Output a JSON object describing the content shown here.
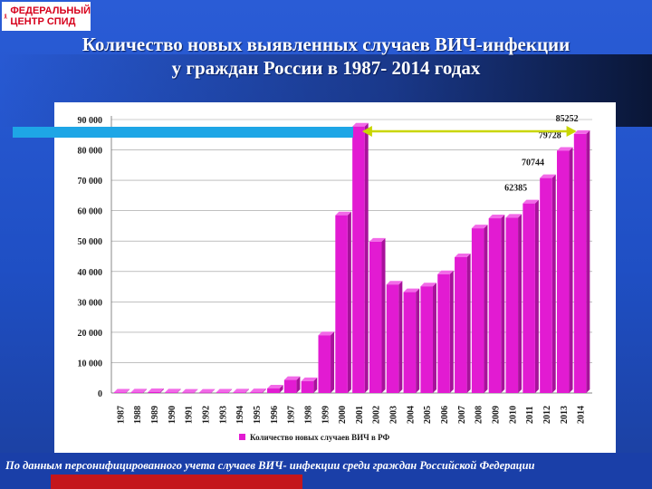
{
  "logo": {
    "line1": "ФЕДЕРАЛЬНЫЙ",
    "line2": "ЦЕНТР СПИД"
  },
  "title": {
    "line1": "Количество новых выявленных случаев ВИЧ-инфекции",
    "line2": "у граждан России в 1987- 2014 годах"
  },
  "chart_data": {
    "type": "bar",
    "categories": [
      "1987",
      "1988",
      "1989",
      "1990",
      "1991",
      "1992",
      "1993",
      "1994",
      "1995",
      "1996",
      "1997",
      "1998",
      "1999",
      "2000",
      "2001",
      "2002",
      "2003",
      "2004",
      "2005",
      "2006",
      "2007",
      "2008",
      "2009",
      "2010",
      "2011",
      "2012",
      "2013",
      "2014"
    ],
    "series": [
      {
        "name": "Количество новых случаев ВИЧ в РФ",
        "values": [
          150,
          200,
          300,
          200,
          100,
          100,
          150,
          200,
          250,
          1500,
          4300,
          3900,
          19000,
          58500,
          87700,
          49800,
          35700,
          33200,
          35100,
          39100,
          44700,
          54200,
          57500,
          57700,
          62385,
          70744,
          79728,
          85252
        ],
        "color": "#e21bd2"
      }
    ],
    "y_ticks": [
      "0",
      "10 000",
      "20 000",
      "30 000",
      "40 000",
      "50 000",
      "60 000",
      "70 000",
      "80 000",
      "90 000"
    ],
    "ylim": [
      0,
      90000
    ],
    "data_labels": [
      {
        "category": "2011",
        "text": "62385"
      },
      {
        "category": "2012",
        "text": "70744"
      },
      {
        "category": "2013",
        "text": "79728"
      },
      {
        "category": "2014",
        "text": "85252"
      }
    ],
    "annotation": "double-headed arrow from 2001 to 2014",
    "legend_position": "bottom"
  },
  "footer_note": "По данным персонифицированного учета случаев ВИЧ- инфекции среди граждан Российской Федерации",
  "colors": {
    "bar": "#e21bd2",
    "bar_side": "#a7129b",
    "bar_top": "#f26ae8",
    "arrow": "#c9d600",
    "background": "#2a5cd6"
  }
}
